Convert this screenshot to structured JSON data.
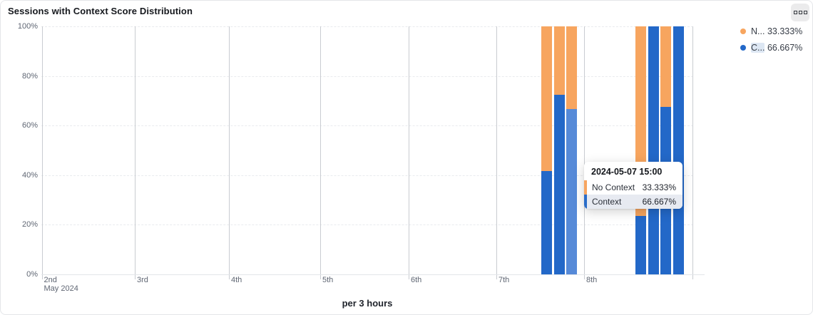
{
  "card": {
    "title": "Sessions with Context Score Distribution"
  },
  "legend": {
    "items": [
      {
        "label": "N...",
        "value": "33.333%",
        "color": "#f7a55f",
        "highlighted": false
      },
      {
        "label": "C...",
        "value": "66.667%",
        "color": "#2368c8",
        "highlighted": true
      }
    ]
  },
  "tooltip": {
    "title": "2024-05-07 15:00",
    "rows": [
      {
        "name": "No Context",
        "value": "33.333%",
        "color": "#f7a55f",
        "highlighted": false
      },
      {
        "name": "Context",
        "value": "66.667%",
        "color": "#2a6cc8",
        "highlighted": true
      }
    ]
  },
  "chart_data": {
    "type": "bar",
    "stacked": true,
    "percent_stack": true,
    "title": "Sessions with Context Score Distribution",
    "xlabel_caption": "per 3 hours",
    "x_axis": {
      "tick_labels": [
        "2nd",
        "3rd",
        "4th",
        "5th",
        "6th",
        "7th",
        "8th"
      ],
      "secondary_label": "May 2024"
    },
    "y_axis": {
      "tick_labels": [
        "0%",
        "20%",
        "40%",
        "60%",
        "80%",
        "100%"
      ],
      "tick_values": [
        0,
        20,
        40,
        60,
        80,
        100
      ],
      "range": [
        0,
        100
      ]
    },
    "legend_position": "top-right",
    "grid": true,
    "series_names": [
      "No Context",
      "Context"
    ],
    "colors": {
      "no_context": "#f7a55f",
      "context": "#2368c8",
      "context_hovered": "#568ad8"
    },
    "points": [
      {
        "time": "2024-05-07 09:00",
        "context": 41.7,
        "no_context": 58.3,
        "hovered": false
      },
      {
        "time": "2024-05-07 12:00",
        "context": 72.4,
        "no_context": 27.6,
        "hovered": false
      },
      {
        "time": "2024-05-07 15:00",
        "context": 66.667,
        "no_context": 33.333,
        "hovered": true
      },
      {
        "time": "2024-05-08 12:00",
        "context": 23.5,
        "no_context": 76.5,
        "hovered": false
      },
      {
        "time": "2024-05-08 15:00",
        "context": 100,
        "no_context": 0,
        "hovered": false
      },
      {
        "time": "2024-05-08 18:00",
        "context": 67.5,
        "no_context": 32.5,
        "hovered": false
      },
      {
        "time": "2024-05-08 21:00",
        "context": 100,
        "no_context": 0,
        "hovered": false
      }
    ]
  }
}
